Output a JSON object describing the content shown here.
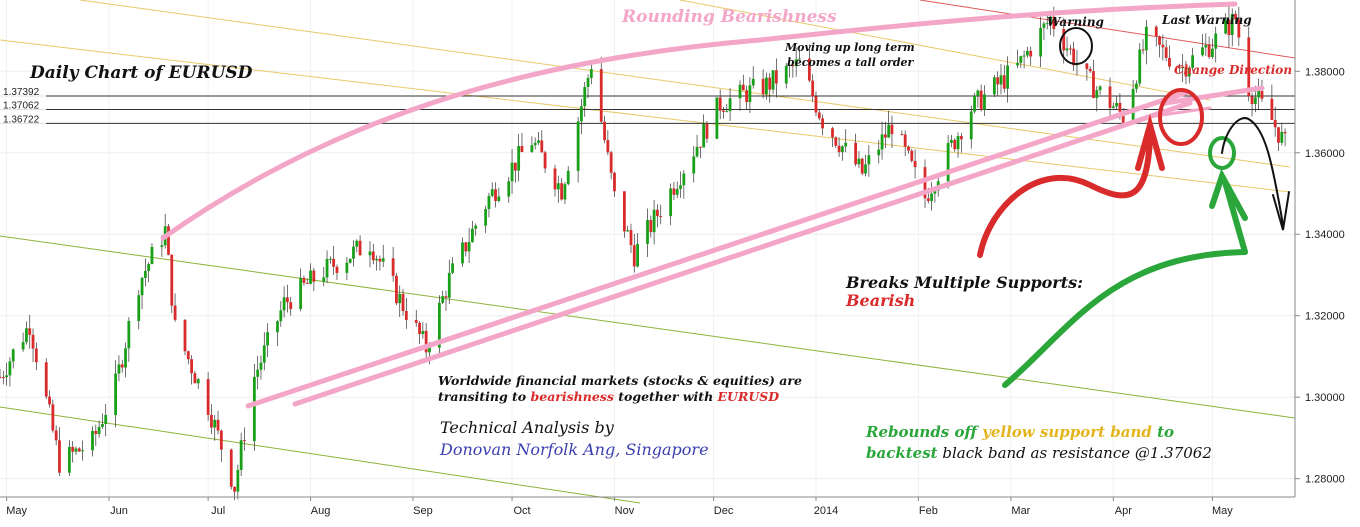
{
  "chart_data": {
    "type": "candlestick",
    "title": "Daily Chart of EURUSD",
    "instrument": "EURUSD",
    "timeframe": "Daily",
    "x_ticks": [
      "May",
      "Jun",
      "Jul",
      "Aug",
      "Sep",
      "Oct",
      "Nov",
      "Dec",
      "2014",
      "Feb",
      "Mar",
      "Apr",
      "May"
    ],
    "y_ticks": [
      "1.38000",
      "1.36000",
      "1.34000",
      "1.32000",
      "1.30000",
      "1.28000"
    ],
    "y_tick_values": [
      1.38,
      1.36,
      1.34,
      1.32,
      1.3,
      1.28
    ],
    "ylim": [
      1.2755,
      1.3975
    ],
    "levels": [
      {
        "label": "1.37392",
        "value": 1.37392
      },
      {
        "label": "1.37062",
        "value": 1.37062
      },
      {
        "label": "1.36722",
        "value": 1.36722
      }
    ],
    "trend_start": "2013-04-29",
    "trend_end": "2014-05-26",
    "series": [
      {
        "date": "2013-04-29",
        "close": 1.305
      },
      {
        "date": "2013-05-08",
        "close": 1.318
      },
      {
        "date": "2013-05-17",
        "close": 1.284
      },
      {
        "date": "2013-05-27",
        "close": 1.289
      },
      {
        "date": "2013-06-03",
        "close": 1.303
      },
      {
        "date": "2013-06-10",
        "close": 1.328
      },
      {
        "date": "2013-06-18",
        "close": 1.341
      },
      {
        "date": "2013-06-21",
        "close": 1.317
      },
      {
        "date": "2013-07-01",
        "close": 1.298
      },
      {
        "date": "2013-07-09",
        "close": 1.278
      },
      {
        "date": "2013-07-15",
        "close": 1.305
      },
      {
        "date": "2013-07-24",
        "close": 1.323
      },
      {
        "date": "2013-08-05",
        "close": 1.331
      },
      {
        "date": "2013-08-19",
        "close": 1.338
      },
      {
        "date": "2013-08-28",
        "close": 1.324
      },
      {
        "date": "2013-09-05",
        "close": 1.312
      },
      {
        "date": "2013-09-12",
        "close": 1.329
      },
      {
        "date": "2013-09-24",
        "close": 1.349
      },
      {
        "date": "2013-10-07",
        "close": 1.363
      },
      {
        "date": "2013-10-16",
        "close": 1.351
      },
      {
        "date": "2013-10-25",
        "close": 1.382
      },
      {
        "date": "2013-11-01",
        "close": 1.349
      },
      {
        "date": "2013-11-07",
        "close": 1.335
      },
      {
        "date": "2013-11-21",
        "close": 1.355
      },
      {
        "date": "2013-12-03",
        "close": 1.372
      },
      {
        "date": "2013-12-18",
        "close": 1.377
      },
      {
        "date": "2013-12-27",
        "close": 1.382
      },
      {
        "date": "2014-01-03",
        "close": 1.368
      },
      {
        "date": "2014-01-15",
        "close": 1.355
      },
      {
        "date": "2014-01-24",
        "close": 1.367
      },
      {
        "date": "2014-02-03",
        "close": 1.349
      },
      {
        "date": "2014-02-17",
        "close": 1.371
      },
      {
        "date": "2014-03-03",
        "close": 1.381
      },
      {
        "date": "2014-03-13",
        "close": 1.393
      },
      {
        "date": "2014-03-24",
        "close": 1.378
      },
      {
        "date": "2014-04-04",
        "close": 1.369
      },
      {
        "date": "2014-04-11",
        "close": 1.388
      },
      {
        "date": "2014-04-22",
        "close": 1.381
      },
      {
        "date": "2014-05-01",
        "close": 1.387
      },
      {
        "date": "2014-05-08",
        "close": 1.393
      },
      {
        "date": "2014-05-12",
        "close": 1.376
      },
      {
        "date": "2014-05-19",
        "close": 1.368
      },
      {
        "date": "2014-05-23",
        "close": 1.362
      }
    ],
    "annotations": {
      "rounding": "Rounding Bearishness",
      "moving_up_1": "Moving up long term",
      "moving_up_2": "becomes a tall order",
      "warning": "Warning",
      "last_warning": "Last Warning",
      "change_direction": "Change Direction",
      "breaks_1": "Breaks Multiple Supports:",
      "breaks_2": "Bearish",
      "world_1": "Worldwide financial markets (stocks & equities) are",
      "world_2a": "transiting to ",
      "world_2b": "bearishness",
      "world_2c": " together with ",
      "world_2d": "EURUSD",
      "ta_1": "Technical Analysis by",
      "ta_2": "Donovan Norfolk Ang, Singapore",
      "rebound_1a": "Rebounds off ",
      "rebound_1b": "yellow support band",
      "rebound_1c": " to",
      "rebound_2a": "backtest",
      "rebound_2b": " black band as resistance @1.37062"
    },
    "colors": {
      "up": "#19a019",
      "down": "#d92b2b",
      "pink": "#f4a6c9",
      "yellow": "#e8c96a",
      "olive": "#8db33a",
      "red_line": "#e05a5a",
      "black": "#000000"
    }
  }
}
